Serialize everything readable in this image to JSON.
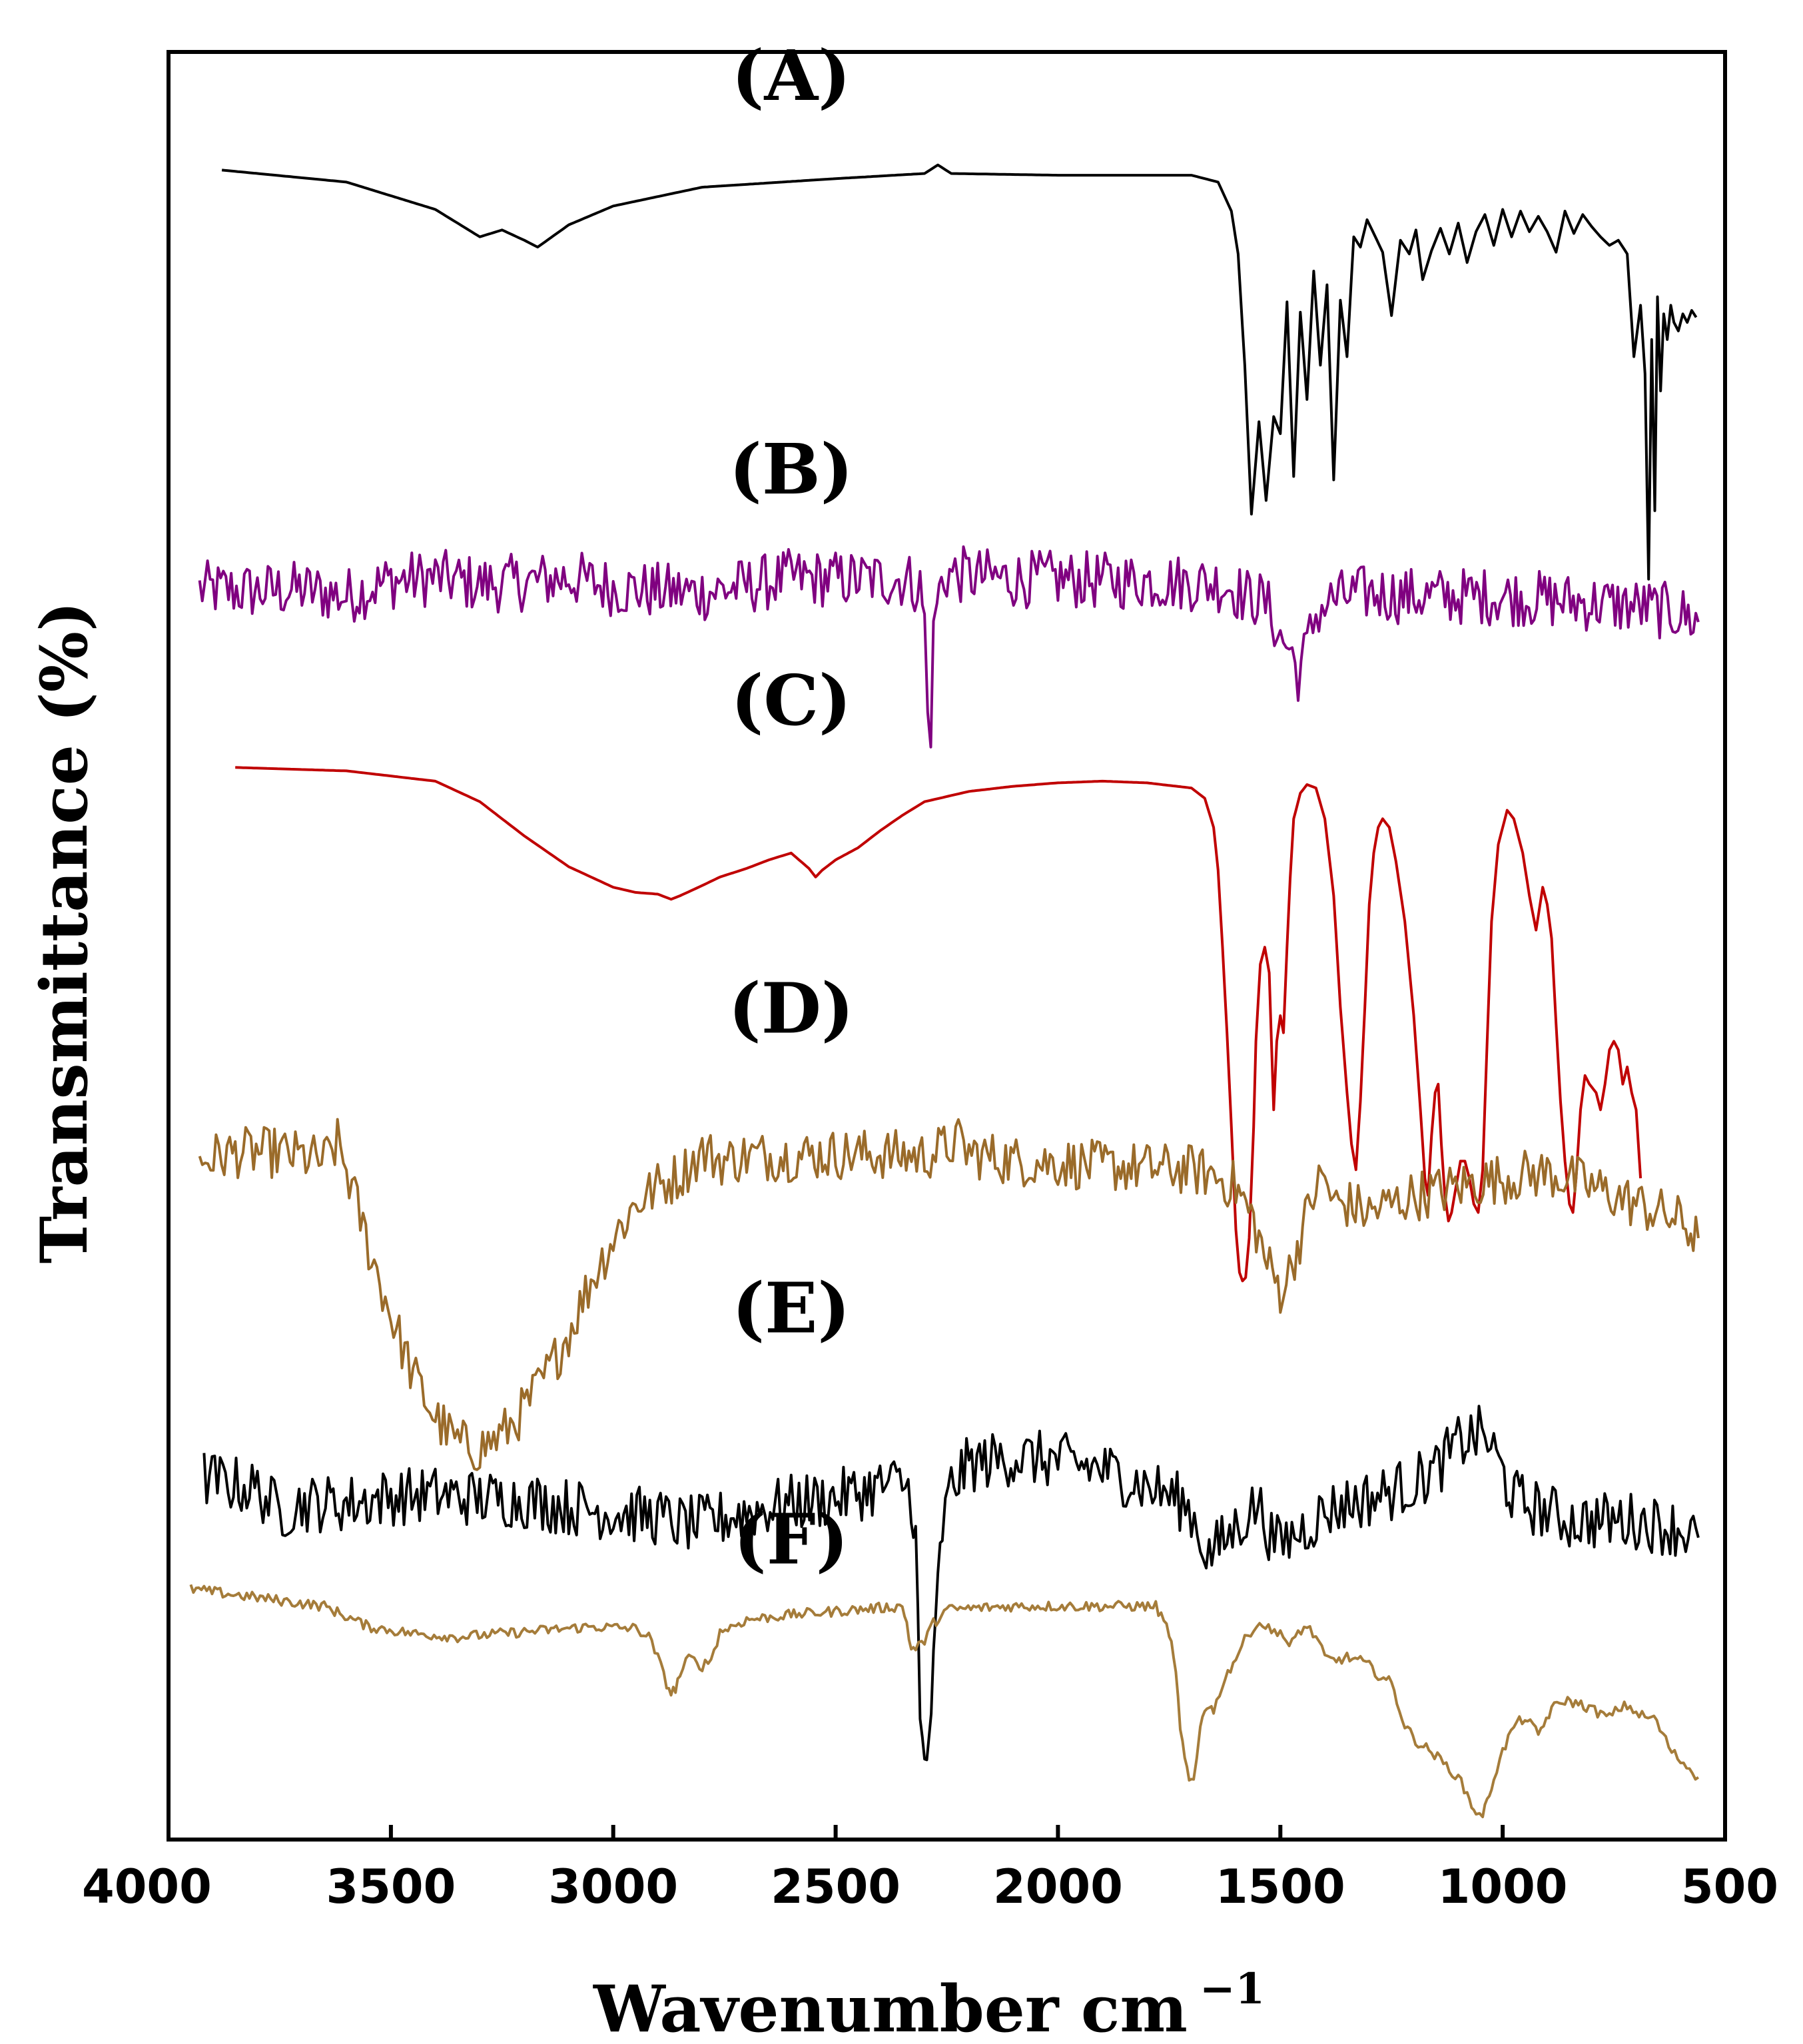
{
  "chart_data": {
    "type": "line",
    "title": "",
    "xlabel": "Wavenumber cm",
    "xlabel_superscript": "−1",
    "ylabel": "Transmittance (%)",
    "xlim": [
      4000,
      500
    ],
    "x_inverted": true,
    "ylim": [
      0,
      100
    ],
    "y_ticks_shown": false,
    "grid": false,
    "legend": "none",
    "xticks": [
      {
        "value": 4000,
        "label": "4000"
      },
      {
        "value": 3500,
        "label": "3500"
      },
      {
        "value": 3000,
        "label": "3000"
      },
      {
        "value": 2500,
        "label": "2500"
      },
      {
        "value": 2000,
        "label": "2000"
      },
      {
        "value": 1500,
        "label": "1500"
      },
      {
        "value": 1000,
        "label": "1000"
      },
      {
        "value": 500,
        "label": "500"
      }
    ],
    "series": [
      {
        "name": "(A)",
        "color": "#000000",
        "noise": 0,
        "x": [
          3880,
          3600,
          3400,
          3300,
          3250,
          3200,
          3170,
          3100,
          3000,
          2800,
          2500,
          2300,
          2270,
          2240,
          2000,
          1800,
          1700,
          1640,
          1610,
          1595,
          1580,
          1565,
          1548,
          1532,
          1515,
          1500,
          1485,
          1470,
          1455,
          1440,
          1425,
          1410,
          1395,
          1380,
          1365,
          1350,
          1335,
          1320,
          1305,
          1290,
          1270,
          1250,
          1230,
          1210,
          1195,
          1180,
          1160,
          1140,
          1120,
          1100,
          1080,
          1060,
          1040,
          1020,
          1000,
          980,
          960,
          940,
          920,
          900,
          880,
          860,
          840,
          820,
          800,
          780,
          760,
          740,
          720,
          705,
          690,
          680,
          672,
          665,
          658,
          652,
          645,
          638,
          630,
          622,
          615,
          605,
          595,
          585,
          575,
          565
        ],
        "y": [
          95.9,
          95.2,
          93.6,
          92.0,
          92.4,
          91.8,
          91.4,
          92.7,
          93.8,
          94.9,
          95.4,
          95.7,
          96.2,
          95.7,
          95.6,
          95.6,
          95.6,
          95.2,
          93.5,
          91.0,
          84.5,
          75.8,
          81.2,
          76.6,
          81.5,
          80.5,
          88.2,
          78.0,
          87.6,
          82.5,
          90.0,
          84.5,
          89.2,
          77.8,
          88.3,
          85.0,
          92.0,
          91.4,
          93.0,
          92.2,
          91.1,
          87.4,
          91.8,
          91.0,
          92.4,
          89.5,
          91.2,
          92.5,
          91.0,
          92.8,
          90.5,
          92.3,
          93.3,
          91.5,
          93.6,
          92.0,
          93.5,
          92.3,
          93.2,
          92.3,
          91.1,
          93.5,
          92.2,
          93.3,
          92.6,
          92.0,
          91.5,
          91.8,
          91.0,
          85.0,
          88.0,
          84.0,
          72.0,
          86.0,
          76.0,
          88.5,
          83.0,
          87.5,
          86.0,
          88.0,
          87.0,
          86.5,
          87.5,
          87.0,
          87.7,
          87.3
        ]
      },
      {
        "name": "(B)",
        "color": "#800080",
        "noise": 1.7,
        "x": [
          3930,
          3800,
          3700,
          3600,
          3500,
          3400,
          3300,
          3200,
          3100,
          3000,
          2900,
          2800,
          2700,
          2600,
          2500,
          2400,
          2340,
          2310,
          2300,
          2293,
          2286,
          2280,
          2272,
          2262,
          2250,
          2200,
          2100,
          2000,
          1900,
          1800,
          1700,
          1620,
          1580,
          1540,
          1520,
          1500,
          1480,
          1460,
          1440,
          1420,
          1400,
          1380,
          1350,
          1300,
          1200,
          1100,
          1000,
          900,
          800,
          700,
          600,
          560
        ],
        "y": [
          71.4,
          71.3,
          71.4,
          71.0,
          71.9,
          72.1,
          71.7,
          71.8,
          72.1,
          71.5,
          71.3,
          71.2,
          71.6,
          72.1,
          72.0,
          72.0,
          72.0,
          71.5,
          69.5,
          64.0,
          63.5,
          68.5,
          70.8,
          71.7,
          72.3,
          72.2,
          72.0,
          72.0,
          71.9,
          71.9,
          71.8,
          71.7,
          71.0,
          70.8,
          70.0,
          68.5,
          68.0,
          66.5,
          68.0,
          70.0,
          70.5,
          70.8,
          71.0,
          71.2,
          71.0,
          71.0,
          71.0,
          70.8,
          70.6,
          70.4,
          70.0,
          69.5
        ]
      },
      {
        "name": "(C)",
        "color": "#c00000",
        "noise": 0,
        "x": [
          3850,
          3600,
          3400,
          3300,
          3200,
          3100,
          3000,
          2950,
          2900,
          2870,
          2850,
          2800,
          2760,
          2700,
          2650,
          2600,
          2560,
          2545,
          2530,
          2500,
          2450,
          2400,
          2350,
          2300,
          2200,
          2100,
          2000,
          1900,
          1800,
          1700,
          1670,
          1650,
          1640,
          1630,
          1620,
          1610,
          1600,
          1592,
          1585,
          1578,
          1570,
          1560,
          1555,
          1545,
          1535,
          1525,
          1520,
          1515,
          1508,
          1500,
          1493,
          1485,
          1478,
          1470,
          1455,
          1440,
          1420,
          1400,
          1380,
          1365,
          1350,
          1340,
          1330,
          1320,
          1310,
          1300,
          1290,
          1280,
          1270,
          1255,
          1240,
          1220,
          1200,
          1185,
          1175,
          1168,
          1160,
          1152,
          1145,
          1138,
          1130,
          1122,
          1115,
          1105,
          1095,
          1085,
          1075,
          1065,
          1055,
          1045,
          1035,
          1025,
          1010,
          990,
          975,
          955,
          940,
          925,
          910,
          900,
          890,
          880,
          870,
          860,
          850,
          842,
          835,
          825,
          815,
          805,
          790,
          780,
          770,
          760,
          750,
          740,
          730,
          720,
          710,
          700,
          690
        ],
        "y": [
          61.0,
          60.8,
          60.2,
          59.0,
          57.0,
          55.2,
          54.0,
          53.7,
          53.6,
          53.3,
          53.5,
          54.1,
          54.6,
          55.1,
          55.6,
          56.0,
          55.1,
          54.6,
          55.0,
          55.6,
          56.3,
          57.3,
          58.2,
          59.0,
          59.6,
          59.9,
          60.1,
          60.2,
          60.1,
          59.8,
          59.2,
          57.5,
          55.0,
          50.5,
          45.5,
          40.0,
          34.0,
          31.5,
          31.0,
          31.2,
          33.5,
          40.0,
          45.0,
          49.5,
          50.5,
          49.0,
          45.0,
          41.0,
          45.0,
          46.5,
          45.5,
          50.5,
          54.5,
          58.0,
          59.5,
          60.0,
          59.8,
          58.0,
          53.5,
          47.0,
          42.0,
          39.0,
          37.5,
          41.5,
          47.0,
          53.0,
          56.0,
          57.5,
          58.0,
          57.5,
          55.5,
          52.0,
          46.5,
          41.0,
          37.0,
          36.0,
          39.5,
          42.0,
          42.5,
          39.0,
          36.0,
          34.5,
          35.0,
          36.5,
          38.0,
          38.0,
          37.0,
          35.5,
          35.0,
          37.5,
          45.0,
          52.0,
          56.5,
          58.5,
          58.0,
          56.0,
          53.5,
          51.5,
          54.0,
          53.0,
          51.0,
          46.0,
          41.5,
          38.0,
          35.5,
          35.0,
          37.0,
          41.0,
          43.0,
          42.5,
          42.0,
          41.0,
          42.5,
          44.5,
          45.0,
          44.5,
          42.5,
          43.5,
          42.0,
          41.0,
          37.0
        ]
      },
      {
        "name": "(D)",
        "color": "#9a6b2a",
        "noise": 1.5,
        "x": [
          3930,
          3850,
          3750,
          3650,
          3620,
          3600,
          3550,
          3500,
          3450,
          3400,
          3350,
          3300,
          3250,
          3200,
          3150,
          3100,
          3050,
          3000,
          2950,
          2900,
          2850,
          2820,
          2800,
          2750,
          2700,
          2600,
          2500,
          2400,
          2300,
          2250,
          2230,
          2200,
          2100,
          2000,
          1900,
          1800,
          1700,
          1650,
          1600,
          1560,
          1530,
          1500,
          1480,
          1450,
          1420,
          1400,
          1380,
          1350,
          1300,
          1250,
          1200,
          1150,
          1100,
          1050,
          1000,
          950,
          900,
          850,
          800,
          750,
          700,
          650,
          600,
          560
        ],
        "y": [
          38.0,
          38.5,
          38.5,
          38.0,
          39.0,
          37.5,
          33.0,
          29.0,
          25.5,
          23.0,
          21.5,
          21.2,
          22.0,
          23.5,
          25.5,
          28.0,
          31.0,
          33.5,
          35.5,
          36.5,
          37.2,
          38.0,
          38.5,
          38.0,
          38.3,
          38.3,
          38.4,
          38.4,
          38.3,
          38.8,
          39.2,
          38.5,
          38.0,
          37.9,
          37.7,
          37.6,
          37.5,
          37.2,
          36.5,
          34.5,
          32.0,
          30.5,
          31.5,
          34.0,
          36.5,
          37.0,
          35.5,
          35.5,
          35.0,
          35.5,
          36.0,
          36.2,
          36.5,
          36.8,
          37.0,
          37.2,
          37.3,
          37.0,
          36.5,
          36.0,
          35.5,
          35.0,
          34.5,
          33.5
        ]
      },
      {
        "name": "(E)",
        "color": "#000000",
        "noise": 1.7,
        "x": [
          3920,
          3800,
          3750,
          3700,
          3600,
          3500,
          3400,
          3300,
          3200,
          3100,
          3000,
          2900,
          2850,
          2800,
          2700,
          2600,
          2500,
          2400,
          2350,
          2330,
          2320,
          2315,
          2310,
          2300,
          2295,
          2290,
          2280,
          2270,
          2260,
          2240,
          2200,
          2100,
          2000,
          1900,
          1800,
          1750,
          1720,
          1700,
          1680,
          1660,
          1620,
          1570,
          1550,
          1520,
          1500,
          1480,
          1450,
          1400,
          1350,
          1300,
          1250,
          1200,
          1150,
          1100,
          1060,
          1040,
          1020,
          980,
          950,
          900,
          850,
          800,
          700,
          600,
          560
        ],
        "y": [
          19.5,
          18.8,
          17.5,
          18.0,
          18.0,
          18.4,
          18.5,
          18.3,
          18.2,
          17.8,
          17.5,
          17.2,
          16.8,
          16.8,
          17.5,
          18.0,
          18.3,
          19.0,
          19.2,
          18.5,
          16.0,
          11.0,
          5.0,
          2.5,
          3.0,
          4.5,
          8.0,
          13.0,
          16.5,
          19.0,
          20.3,
          20.7,
          20.5,
          20.0,
          19.0,
          18.5,
          18.0,
          17.5,
          16.0,
          15.0,
          16.0,
          17.5,
          18.0,
          16.0,
          15.5,
          16.0,
          16.5,
          17.5,
          18.0,
          18.3,
          18.7,
          19.2,
          20.0,
          21.5,
          22.0,
          22.0,
          21.0,
          18.5,
          18.0,
          17.5,
          17.0,
          17.0,
          17.0,
          16.5,
          16.0
        ]
      },
      {
        "name": "(F)",
        "color": "#a57c3a",
        "noise": 0.3,
        "x": [
          3950,
          3800,
          3650,
          3550,
          3450,
          3350,
          3200,
          3050,
          2950,
          2920,
          2900,
          2880,
          2870,
          2860,
          2850,
          2830,
          2800,
          2780,
          2760,
          2700,
          2600,
          2450,
          2350,
          2340,
          2330,
          2320,
          2300,
          2280,
          2250,
          2100,
          1900,
          1780,
          1750,
          1735,
          1725,
          1715,
          1705,
          1700,
          1695,
          1688,
          1680,
          1670,
          1660,
          1650,
          1630,
          1600,
          1580,
          1560,
          1540,
          1520,
          1500,
          1480,
          1460,
          1440,
          1420,
          1400,
          1380,
          1350,
          1320,
          1300,
          1280,
          1250,
          1220,
          1190,
          1160,
          1140,
          1120,
          1100,
          1080,
          1070,
          1060,
          1052,
          1045,
          1035,
          1020,
          1000,
          975,
          950,
          920,
          890,
          860,
          830,
          800,
          780,
          760,
          740,
          720,
          700,
          680,
          660,
          640,
          620,
          600,
          580,
          560
        ],
        "y": [
          13.0,
          12.5,
          12.0,
          10.8,
          10.4,
          10.2,
          10.5,
          10.8,
          10.7,
          10.2,
          9.0,
          7.5,
          6.9,
          7.2,
          8.0,
          9.0,
          8.5,
          8.9,
          10.5,
          11.2,
          11.5,
          11.8,
          12.0,
          11.0,
          9.5,
          9.5,
          10.0,
          11.0,
          11.8,
          12.0,
          12.0,
          12.0,
          10.5,
          8.0,
          5.0,
          3.0,
          1.8,
          1.6,
          1.8,
          3.0,
          5.0,
          6.0,
          6.3,
          5.8,
          7.5,
          9.0,
          10.0,
          10.8,
          11.0,
          10.5,
          10.6,
          9.5,
          10.5,
          10.8,
          10.2,
          9.0,
          8.8,
          9.0,
          8.8,
          8.5,
          8.0,
          7.5,
          5.0,
          4.0,
          3.5,
          3.0,
          2.5,
          2.0,
          1.0,
          0.4,
          0.0,
          -0.3,
          -0.1,
          0.5,
          2.0,
          3.5,
          5.0,
          5.5,
          4.5,
          6.0,
          6.5,
          6.3,
          6.0,
          5.7,
          5.5,
          6.0,
          6.2,
          5.8,
          5.5,
          5.5,
          4.5,
          3.5,
          3.0,
          2.5,
          2.0
        ]
      }
    ],
    "curve_labels": [
      {
        "text": "(A)",
        "x": 2600,
        "y": 100.0
      },
      {
        "text": "(B)",
        "x": 2600,
        "y": 77.0
      },
      {
        "text": "(C)",
        "x": 2600,
        "y": 63.5
      },
      {
        "text": "(D)",
        "x": 2600,
        "y": 45.5
      },
      {
        "text": "(E)",
        "x": 2600,
        "y": 28.0
      },
      {
        "text": "(F)",
        "x": 2600,
        "y": 14.5
      }
    ]
  }
}
